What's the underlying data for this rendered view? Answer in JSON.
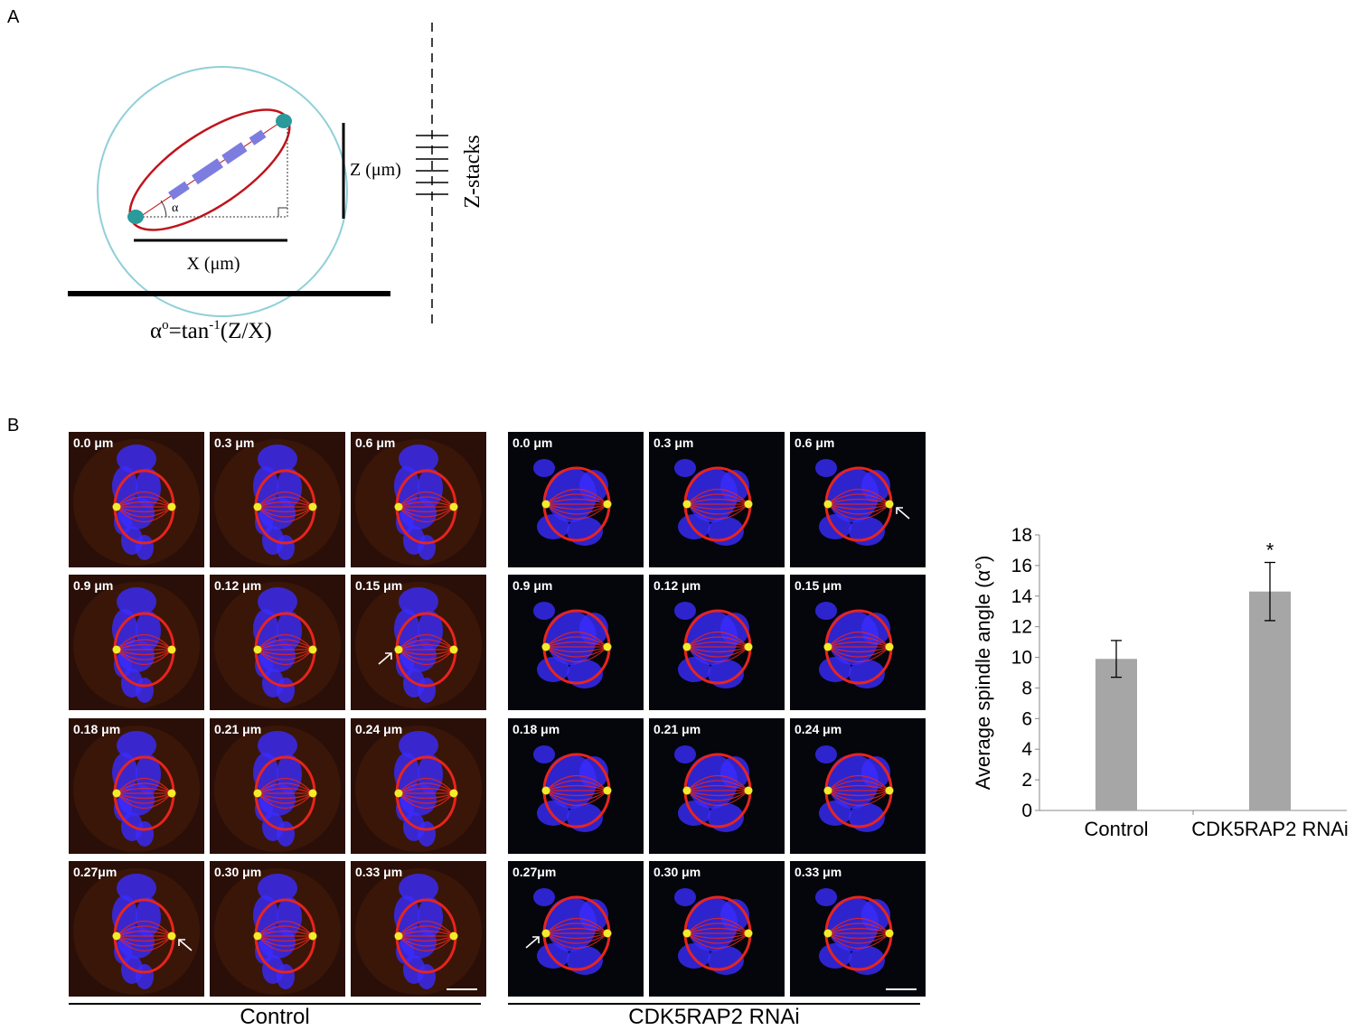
{
  "panels": {
    "a": "A",
    "b": "B"
  },
  "diagram": {
    "z_label": "Z (μm)",
    "x_label": "X (μm)",
    "angle_label": "α",
    "z_stacks_label": "Z-stacks",
    "formula_prefix": "α",
    "formula_deg": "o",
    "formula_mid": "=tan",
    "formula_sup": "-1",
    "formula_end": "(Z/X)"
  },
  "control": {
    "group_label": "Control",
    "tiles": [
      {
        "label": "0.0 μm",
        "arrow": ""
      },
      {
        "label": "0.3 μm",
        "arrow": ""
      },
      {
        "label": "0.6 μm",
        "arrow": ""
      },
      {
        "label": "0.9 μm",
        "arrow": ""
      },
      {
        "label": "0.12 μm",
        "arrow": ""
      },
      {
        "label": "0.15 μm",
        "arrow": "left"
      },
      {
        "label": "0.18 μm",
        "arrow": ""
      },
      {
        "label": "0.21 μm",
        "arrow": ""
      },
      {
        "label": "0.24 μm",
        "arrow": ""
      },
      {
        "label": "0.27μm",
        "arrow": "right"
      },
      {
        "label": "0.30 μm",
        "arrow": ""
      },
      {
        "label": "0.33 μm",
        "arrow": ""
      }
    ]
  },
  "rnai": {
    "group_label": "CDK5RAP2 RNAi",
    "tiles": [
      {
        "label": "0.0 μm",
        "arrow": ""
      },
      {
        "label": "0.3 μm",
        "arrow": ""
      },
      {
        "label": "0.6 μm",
        "arrow": "right"
      },
      {
        "label": "0.9 μm",
        "arrow": ""
      },
      {
        "label": "0.12 μm",
        "arrow": ""
      },
      {
        "label": "0.15 μm",
        "arrow": ""
      },
      {
        "label": "0.18 μm",
        "arrow": ""
      },
      {
        "label": "0.21 μm",
        "arrow": ""
      },
      {
        "label": "0.24 μm",
        "arrow": ""
      },
      {
        "label": "0.27μm",
        "arrow": "left"
      },
      {
        "label": "0.30 μm",
        "arrow": ""
      },
      {
        "label": "0.33 μm",
        "arrow": ""
      }
    ]
  },
  "colors": {
    "tubulin": "#e8241c",
    "dna": "#3a2cff",
    "centrosome": "#f2ec2a",
    "bar": "#a6a6a6",
    "cell_outline": "#8fd0d8",
    "spindle": "#c0141c"
  },
  "chart_data": {
    "type": "bar",
    "categories": [
      "Control",
      "CDK5RAP2 RNAi"
    ],
    "values": [
      9.9,
      14.3
    ],
    "errors": [
      1.2,
      1.9
    ],
    "annotations": [
      "",
      "*"
    ],
    "ylabel": "Average spindle angle (α°)",
    "ylim": [
      0,
      18
    ],
    "yticks": [
      0,
      2,
      4,
      6,
      8,
      10,
      12,
      14,
      16,
      18
    ],
    "grid": false
  }
}
